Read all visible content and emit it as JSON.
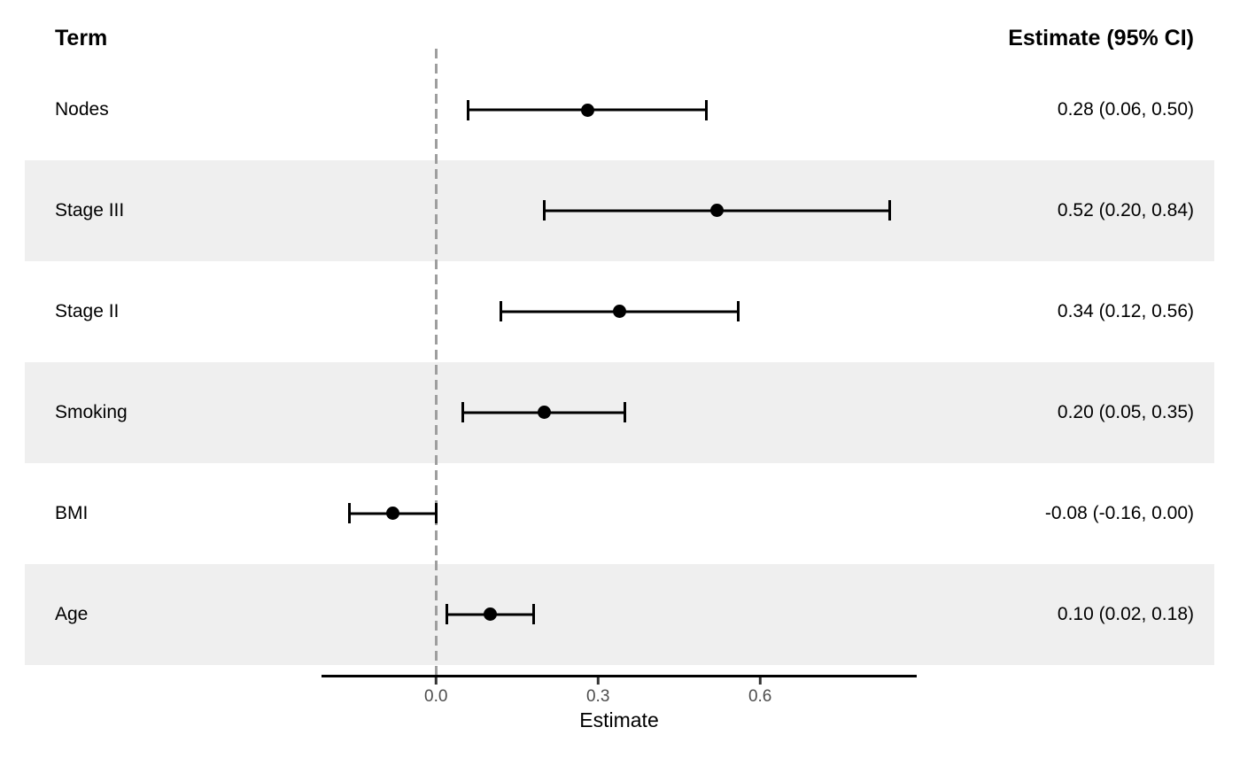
{
  "header": {
    "term_column": "Term",
    "estimate_column": "Estimate (95% CI)"
  },
  "chart_data": {
    "type": "scatter",
    "subtype": "forest-plot-dot-with-ci",
    "title": "",
    "xlabel": "Estimate",
    "ylabel": "",
    "xlim": [
      -0.212,
      0.89
    ],
    "vline": 0,
    "grid": "off",
    "columns": {
      "term": "Term",
      "estimate": "Estimate (95% CI)"
    },
    "xticks": [
      {
        "value": 0.0,
        "label": "0.0"
      },
      {
        "value": 0.3,
        "label": "0.3"
      },
      {
        "value": 0.6,
        "label": "0.6"
      }
    ],
    "rows": [
      {
        "term": "Nodes",
        "estimate": 0.28,
        "ci_low": 0.06,
        "ci_high": 0.5,
        "estimate_label": "0.28 (0.06, 0.50)",
        "shaded": false
      },
      {
        "term": "Stage III",
        "estimate": 0.52,
        "ci_low": 0.2,
        "ci_high": 0.84,
        "estimate_label": "0.52 (0.20, 0.84)",
        "shaded": true
      },
      {
        "term": "Stage II",
        "estimate": 0.34,
        "ci_low": 0.12,
        "ci_high": 0.56,
        "estimate_label": "0.34 (0.12, 0.56)",
        "shaded": false
      },
      {
        "term": "Smoking",
        "estimate": 0.2,
        "ci_low": 0.05,
        "ci_high": 0.35,
        "estimate_label": "0.20 (0.05, 0.35)",
        "shaded": true
      },
      {
        "term": "BMI",
        "estimate": -0.08,
        "ci_low": -0.16,
        "ci_high": 0.0,
        "estimate_label": "-0.08 (-0.16, 0.00)",
        "shaded": false
      },
      {
        "term": "Age",
        "estimate": 0.1,
        "ci_low": 0.02,
        "ci_high": 0.18,
        "estimate_label": "0.10 (0.02, 0.18)",
        "shaded": true
      }
    ],
    "colors": {
      "stripe": "#EFEFEF",
      "reference_line": "#9E9E9E",
      "marker": "#000000",
      "axis_line": "#000000",
      "axis_tick_label": "#4D4D4D",
      "text": "#000000"
    }
  }
}
